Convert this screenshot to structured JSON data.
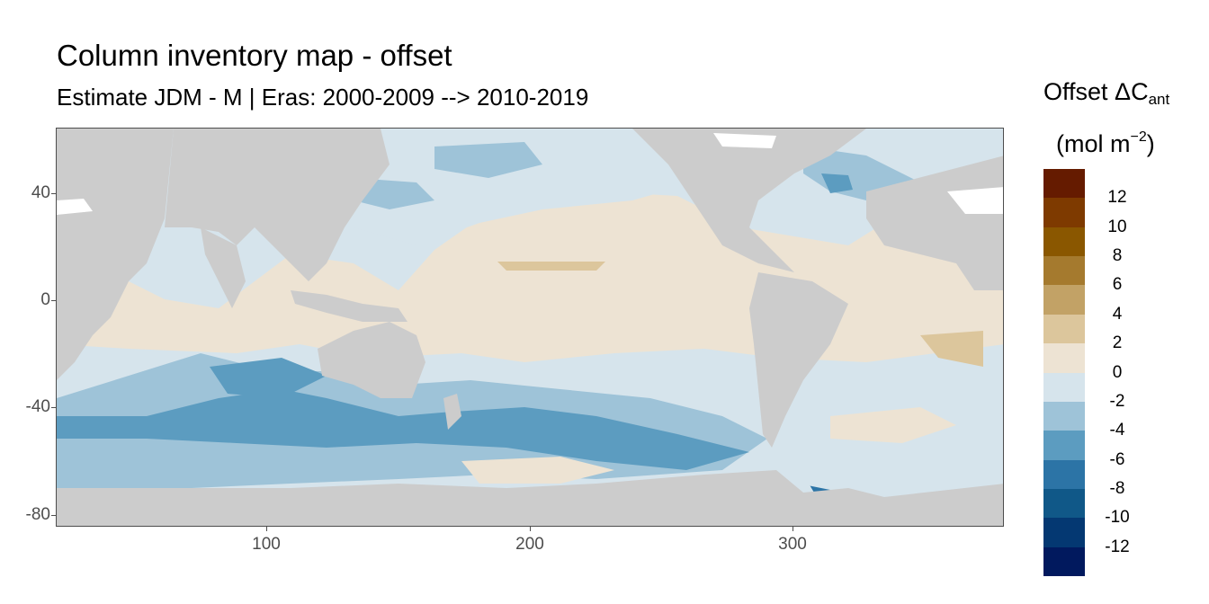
{
  "header": {
    "title": "Column inventory map - offset",
    "subtitle": "Estimate JDM - M | Eras: 2000-2009 --> 2010-2019"
  },
  "axes": {
    "y_ticks": [
      "40",
      "0",
      "-40",
      "-80"
    ],
    "x_ticks": [
      "100",
      "200",
      "300"
    ],
    "xlim": [
      20,
      380
    ],
    "ylim": [
      -85,
      65
    ]
  },
  "legend": {
    "title_main": "Offset ΔC",
    "title_sub": "ant",
    "unit_main": "(mol m",
    "unit_sup": "−2",
    "unit_end": ")",
    "labels": [
      "12",
      "10",
      "8",
      "6",
      "4",
      "2",
      "0",
      "-2",
      "-4",
      "-6",
      "-8",
      "-10",
      "-12"
    ],
    "colors": [
      "#651b00",
      "#7e3a00",
      "#8a5700",
      "#a57a2e",
      "#c2a266",
      "#dcc69c",
      "#ede3d3",
      "#d6e4ec",
      "#9ec3d8",
      "#5c9cc0",
      "#2c74a6",
      "#105888",
      "#043872",
      "#01195e"
    ]
  },
  "map": {
    "land_color": "#cccccc",
    "sea_ice_color": "#ffffff"
  }
}
